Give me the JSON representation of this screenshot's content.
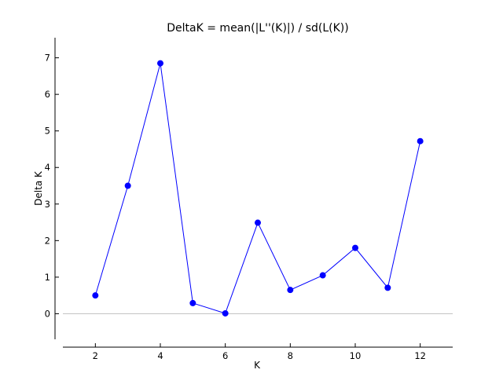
{
  "chart_data": {
    "type": "line",
    "title": "DeltaK = mean(|L''(K)|) / sd(L(K))",
    "xlabel": "K",
    "ylabel": "Delta K",
    "xlim": [
      1,
      13
    ],
    "ylim": [
      -0.7,
      7.55
    ],
    "xticks": [
      2,
      4,
      6,
      8,
      10,
      12
    ],
    "yticks": [
      0,
      1,
      2,
      3,
      4,
      5,
      6,
      7
    ],
    "grid": false,
    "zero_line": true,
    "series": [
      {
        "color": "#0000ff",
        "marker": "circle",
        "x": [
          2,
          3,
          4,
          5,
          6,
          7,
          8,
          9,
          10,
          11,
          12
        ],
        "y": [
          0.5,
          3.5,
          6.85,
          0.29,
          0.01,
          2.49,
          0.65,
          1.05,
          1.8,
          0.71,
          4.72
        ]
      }
    ]
  },
  "colors": {
    "series": "#0000ff",
    "axis": "#000000",
    "zero_line": "#bfbfbf"
  }
}
